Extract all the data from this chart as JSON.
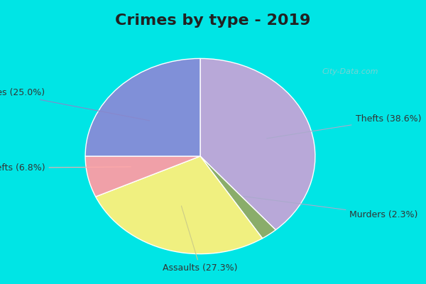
{
  "title": "Crimes by type - 2019",
  "slices": [
    {
      "label": "Thefts",
      "pct": 38.6,
      "color": "#b8a8d8"
    },
    {
      "label": "Murders",
      "pct": 2.3,
      "color": "#8aad6a"
    },
    {
      "label": "Assaults",
      "pct": 27.3,
      "color": "#f0f080"
    },
    {
      "label": "Auto thefts",
      "pct": 6.8,
      "color": "#f0a0a8"
    },
    {
      "label": "Burglaries",
      "pct": 25.0,
      "color": "#8090d8"
    }
  ],
  "background_top": "#00e5e5",
  "background_main": "#d8edd8",
  "title_fontsize": 16,
  "label_fontsize": 9,
  "watermark": "City-Data.com"
}
